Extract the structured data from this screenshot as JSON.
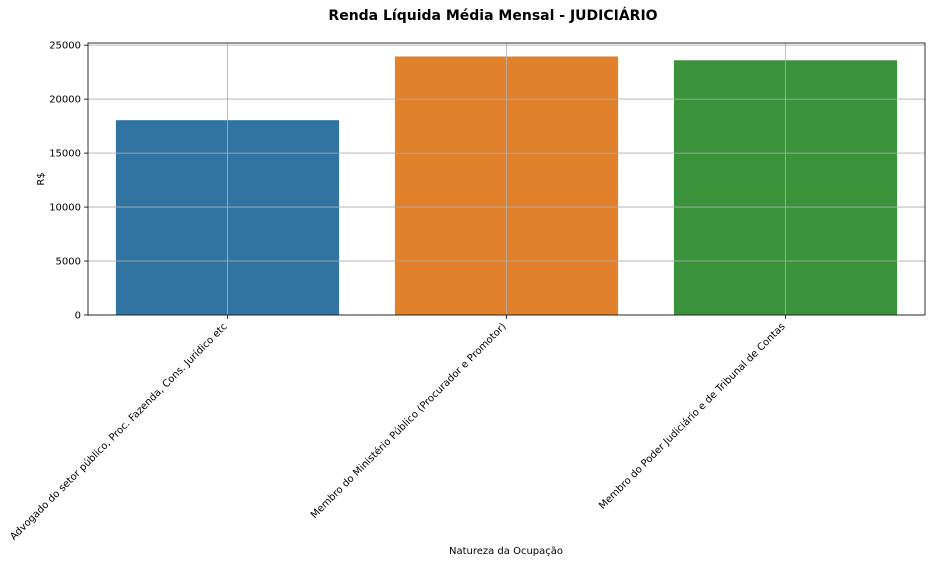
{
  "chart_data": {
    "type": "bar",
    "title": "Renda Líquida Média Mensal - JUDICIÁRIO",
    "xlabel": "Natureza da Ocupação",
    "ylabel": "R$",
    "categories": [
      "Advogado do setor público, Proc. Fazenda, Cons. Jurídico etc",
      "Membro do Ministério Público (Procurador e Promotor)",
      "Membro do Poder Judiciário e de Tribunal de Contas"
    ],
    "values": [
      18050,
      23950,
      23600
    ],
    "colors": [
      "#3274a1",
      "#e1812c",
      "#3a923a"
    ],
    "ylim": [
      0,
      25200
    ],
    "yticks": [
      0,
      5000,
      10000,
      15000,
      20000,
      25000
    ],
    "grid": true,
    "legend": "none"
  }
}
